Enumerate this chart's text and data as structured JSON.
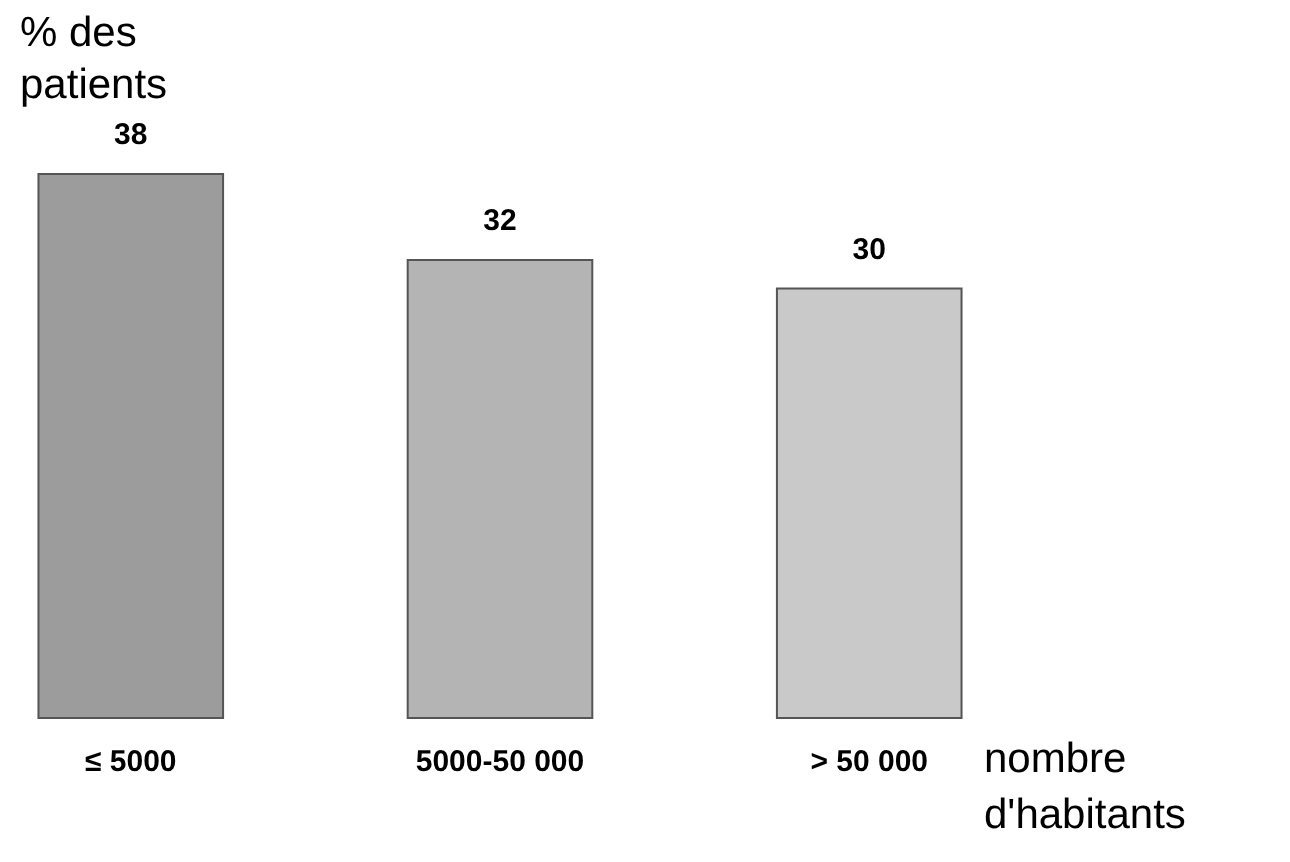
{
  "chart_data": {
    "type": "bar",
    "ylabel": "% des patients",
    "xlabel": "nombre d'habitants",
    "categories": [
      "≤ 5000",
      "5000-50 000",
      "> 50 000"
    ],
    "values": [
      38,
      32,
      30
    ],
    "colors": [
      "#9c9c9c",
      "#b4b4b4",
      "#c9c9c9"
    ],
    "data_labels": true
  }
}
